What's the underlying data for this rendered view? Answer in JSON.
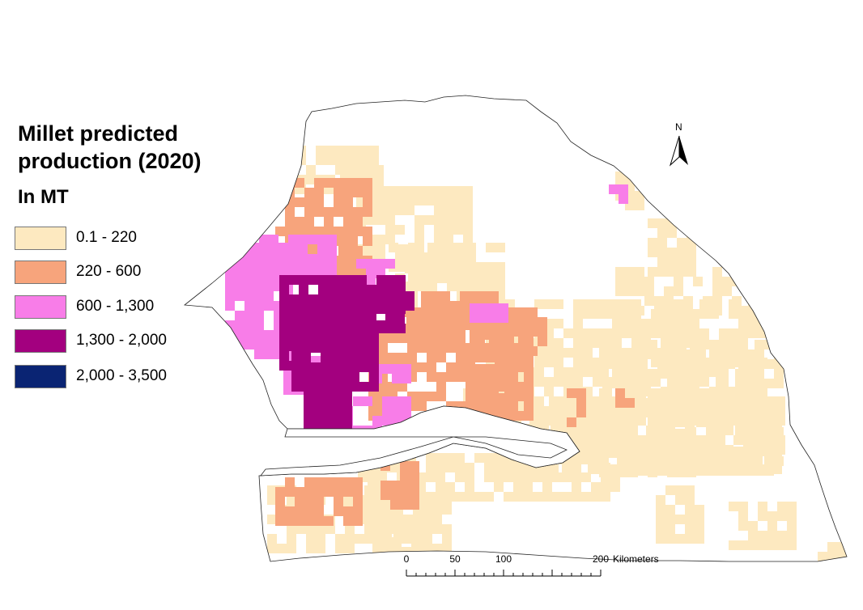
{
  "legend": {
    "title_line1": "Millet predicted",
    "title_line2": "production (2020)",
    "unit": "In MT",
    "classes": [
      {
        "label": "0.1 - 220",
        "color": "#fde9c0"
      },
      {
        "label": "220 - 600",
        "color": "#f7a47c"
      },
      {
        "label": "600 - 1,300",
        "color": "#f87de8"
      },
      {
        "label": "1,300 - 2,000",
        "color": "#a3007f"
      },
      {
        "label": "2,000 - 3,500",
        "color": "#0a2473"
      }
    ]
  },
  "north_arrow": {
    "label": "N"
  },
  "scale_bar": {
    "ticks": [
      "0",
      "50",
      "100"
    ],
    "end_label": "200",
    "unit": "Kilometers"
  }
}
